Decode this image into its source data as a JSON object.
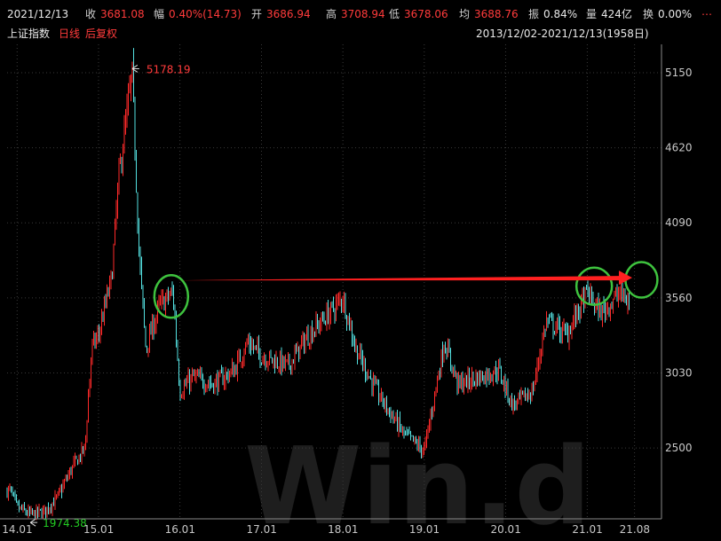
{
  "header": {
    "date": "2021/12/13",
    "close_label": "收",
    "close_value": "3681.08",
    "change_label": "幅",
    "change_value": "0.40%(14.73)",
    "open_label": "开",
    "open_value": "3686.94",
    "high_label": "高",
    "high_value": "3708.94",
    "low_label": "低",
    "low_value": "3678.06",
    "avg_label": "均",
    "avg_value": "3688.76",
    "amp_label": "振",
    "amp_value": "0.84%",
    "vol_label": "量",
    "vol_value": "424亿",
    "turnover_label": "换",
    "turnover_value": "0.00%",
    "more": "⋯"
  },
  "subheader": {
    "index_name": "上证指数",
    "period": "日线",
    "adjust": "后复权",
    "range": "2013/12/02-2021/12/13(1958日)"
  },
  "watermark": "Win.d",
  "colors": {
    "up": "#ff2a2a",
    "down": "#54e1e1",
    "circle": "#3ec23e",
    "arrow": "#ff2020",
    "high_ann": "#ff3b3b",
    "low_ann": "#22cc22"
  },
  "chart_data": {
    "type": "candlestick",
    "title": "上证指数 日线 后复权",
    "x_ticks": [
      "14.01",
      "15.01",
      "16.01",
      "17.01",
      "18.01",
      "19.01",
      "20.01",
      "21.01",
      "21.08"
    ],
    "y_ticks": [
      5150,
      4620,
      4090,
      3560,
      3030,
      2500
    ],
    "ylim": [
      2000,
      5350
    ],
    "annotations": [
      {
        "label": "5178.19",
        "type": "high",
        "date": "2015-06"
      },
      {
        "label": "1974.38",
        "type": "low",
        "date": "2014-03"
      }
    ],
    "series": [
      {
        "name": "上证指数",
        "approx_close": [
          [
            "2013-12",
            2200
          ],
          [
            "2014-01",
            2080
          ],
          [
            "2014-03",
            2030
          ],
          [
            "2014-05",
            2050
          ],
          [
            "2014-07",
            2150
          ],
          [
            "2014-09",
            2350
          ],
          [
            "2014-11",
            2500
          ],
          [
            "2014-12",
            3200
          ],
          [
            "2015-01",
            3300
          ],
          [
            "2015-03",
            3700
          ],
          [
            "2015-04",
            4400
          ],
          [
            "2015-06",
            5150
          ],
          [
            "2015-07",
            3900
          ],
          [
            "2015-08",
            3200
          ],
          [
            "2015-10",
            3500
          ],
          [
            "2015-12",
            3600
          ],
          [
            "2016-01",
            2900
          ],
          [
            "2016-03",
            3000
          ],
          [
            "2016-06",
            2950
          ],
          [
            "2016-09",
            3050
          ],
          [
            "2016-11",
            3250
          ],
          [
            "2017-01",
            3150
          ],
          [
            "2017-05",
            3080
          ],
          [
            "2017-08",
            3300
          ],
          [
            "2017-11",
            3450
          ],
          [
            "2018-01",
            3560
          ],
          [
            "2018-03",
            3200
          ],
          [
            "2018-06",
            2900
          ],
          [
            "2018-10",
            2600
          ],
          [
            "2019-01",
            2480
          ],
          [
            "2019-04",
            3250
          ],
          [
            "2019-06",
            2950
          ],
          [
            "2019-09",
            3000
          ],
          [
            "2019-12",
            3050
          ],
          [
            "2020-02",
            2800
          ],
          [
            "2020-05",
            2900
          ],
          [
            "2020-07",
            3400
          ],
          [
            "2020-10",
            3300
          ],
          [
            "2021-01",
            3600
          ],
          [
            "2021-03",
            3450
          ],
          [
            "2021-06",
            3600
          ],
          [
            "2021-08",
            3450
          ],
          [
            "2021-10",
            3600
          ],
          [
            "2021-12",
            3681
          ]
        ]
      }
    ]
  }
}
